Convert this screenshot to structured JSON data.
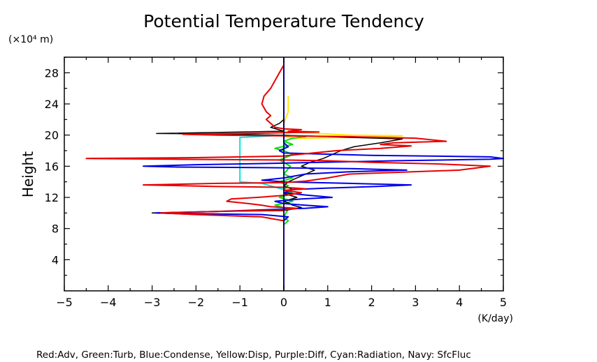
{
  "chart_data": {
    "type": "line",
    "title": "Potential Temperature Tendency",
    "ylabel": "Height",
    "yunit": "(×10⁴ m)",
    "xunit": "(K/day)",
    "xlim": [
      -5,
      5
    ],
    "ylim": [
      0,
      30
    ],
    "xticks": [
      -5,
      -4,
      -3,
      -2,
      -1,
      0,
      1,
      2,
      3,
      4,
      5
    ],
    "xtick_labels": [
      "−5",
      "−4",
      "−3",
      "−2",
      "−1",
      "0",
      "1",
      "2",
      "3",
      "4",
      "5"
    ],
    "yticks": [
      4,
      8,
      12,
      16,
      20,
      24,
      28
    ],
    "ytick_labels": [
      "4",
      "8",
      "12",
      "16",
      "20",
      "24",
      "28"
    ],
    "grid": false,
    "legend_text": "Red:Adv, Green:Turb, Blue:Condense, Yellow:Disp, Purple:Diff, Cyan:Radiation, Navy: SfcFluc",
    "series": [
      {
        "name": "Cyan:Radiation",
        "color": "#00e5e5",
        "width": 2,
        "points": [
          [
            0,
            0.2
          ],
          [
            0,
            13
          ],
          [
            -0.5,
            13.8
          ],
          [
            -1,
            14
          ],
          [
            -1,
            19.7
          ],
          [
            -0.6,
            19.8
          ],
          [
            0,
            20
          ]
        ]
      },
      {
        "name": "Yellow:Disp",
        "color": "#ffe600",
        "width": 2,
        "points": [
          [
            0,
            0.2
          ],
          [
            0,
            20.5
          ],
          [
            0.4,
            20.3
          ],
          [
            1.5,
            20
          ],
          [
            2.7,
            19.9
          ],
          [
            1.5,
            19.7
          ],
          [
            0.3,
            19.6
          ],
          [
            0,
            19.8
          ],
          [
            0,
            21.5
          ],
          [
            0.1,
            23
          ],
          [
            0.1,
            25
          ]
        ]
      },
      {
        "name": "Green:Turb",
        "color": "#00e000",
        "width": 2,
        "points": [
          [
            0,
            0.2
          ],
          [
            0,
            8.5
          ],
          [
            0.1,
            9
          ],
          [
            0,
            9.5
          ],
          [
            0.1,
            10.5
          ],
          [
            -0.2,
            11
          ],
          [
            0.2,
            11.5
          ],
          [
            -0.1,
            12
          ],
          [
            0.2,
            12.5
          ],
          [
            0,
            13
          ],
          [
            0.1,
            13.5
          ],
          [
            -0.1,
            14
          ],
          [
            0.2,
            14.5
          ],
          [
            0,
            15
          ],
          [
            0.15,
            16
          ],
          [
            -0.1,
            16.8
          ],
          [
            0.2,
            17.5
          ],
          [
            0,
            18
          ],
          [
            -0.2,
            18.3
          ],
          [
            0.2,
            18.8
          ],
          [
            0,
            19.2
          ],
          [
            0.2,
            19.6
          ],
          [
            0.5,
            19.8
          ],
          [
            0,
            20
          ],
          [
            0,
            20.5
          ]
        ]
      },
      {
        "name": "Black",
        "color": "#000000",
        "width": 1.5,
        "points": [
          [
            0,
            0.2
          ],
          [
            0,
            9
          ],
          [
            -0.5,
            9.5
          ],
          [
            -2,
            9.8
          ],
          [
            -3,
            10
          ],
          [
            -1.5,
            10.2
          ],
          [
            0,
            10.3
          ],
          [
            0.2,
            10.5
          ],
          [
            0.4,
            10.7
          ],
          [
            0.2,
            11
          ],
          [
            0.1,
            11.3
          ],
          [
            0,
            11.5
          ],
          [
            0.3,
            12
          ],
          [
            0,
            12.5
          ],
          [
            0.2,
            13
          ],
          [
            0,
            13.5
          ],
          [
            0.1,
            14
          ],
          [
            0.3,
            14.5
          ],
          [
            0.5,
            15
          ],
          [
            0.7,
            15.5
          ],
          [
            0.4,
            16
          ],
          [
            0.6,
            16.5
          ],
          [
            0.9,
            17
          ],
          [
            1.1,
            17.5
          ],
          [
            1.3,
            18
          ],
          [
            1.6,
            18.5
          ],
          [
            2.2,
            19
          ],
          [
            2.7,
            19.5
          ],
          [
            1.5,
            19.7
          ],
          [
            0.5,
            19.9
          ],
          [
            -1,
            20.1
          ],
          [
            -2.9,
            20.2
          ],
          [
            -1,
            20.4
          ],
          [
            0,
            20.5
          ],
          [
            -0.3,
            21
          ],
          [
            -0.1,
            21.5
          ],
          [
            0,
            22
          ],
          [
            0,
            25
          ]
        ]
      },
      {
        "name": "Blue:Condense",
        "color": "#0000e8",
        "width": 2,
        "points": [
          [
            0,
            0.2
          ],
          [
            0,
            9
          ],
          [
            0.1,
            9.5
          ],
          [
            -0.5,
            9.8
          ],
          [
            -2,
            9.9
          ],
          [
            -2.9,
            10
          ],
          [
            -1.5,
            10.2
          ],
          [
            -0.5,
            10.4
          ],
          [
            0.5,
            10.6
          ],
          [
            1,
            10.8
          ],
          [
            0.5,
            11
          ],
          [
            0,
            11.2
          ],
          [
            -0.2,
            11.5
          ],
          [
            0.4,
            11.8
          ],
          [
            1.1,
            12
          ],
          [
            0.5,
            12.3
          ],
          [
            0,
            12.6
          ],
          [
            0.2,
            13
          ],
          [
            1,
            13.2
          ],
          [
            2.1,
            13.4
          ],
          [
            2.9,
            13.6
          ],
          [
            1.5,
            13.8
          ],
          [
            0,
            14
          ],
          [
            -0.5,
            14.2
          ],
          [
            0,
            14.5
          ],
          [
            0.5,
            15
          ],
          [
            1.5,
            15.3
          ],
          [
            2.8,
            15.5
          ],
          [
            1.5,
            15.7
          ],
          [
            0,
            15.8
          ],
          [
            -2.5,
            15.9
          ],
          [
            -3.2,
            16
          ],
          [
            -2,
            16.2
          ],
          [
            0,
            16.4
          ],
          [
            2.5,
            16.7
          ],
          [
            4.7,
            16.9
          ],
          [
            5,
            17
          ],
          [
            4.7,
            17.2
          ],
          [
            2,
            17.4
          ],
          [
            0,
            17.7
          ],
          [
            -0.1,
            18
          ],
          [
            0.1,
            18.5
          ],
          [
            0,
            19
          ],
          [
            0,
            30
          ]
        ]
      },
      {
        "name": "Red:Adv",
        "color": "#e80000",
        "width": 2,
        "points": [
          [
            0,
            0.2
          ],
          [
            0,
            9
          ],
          [
            -0.2,
            9.2
          ],
          [
            -0.5,
            9.5
          ],
          [
            -2,
            9.8
          ],
          [
            -2.8,
            10
          ],
          [
            -1.5,
            10.2
          ],
          [
            0,
            10.4
          ],
          [
            0.3,
            10.6
          ],
          [
            -0.3,
            10.8
          ],
          [
            -0.5,
            11
          ],
          [
            -0.8,
            11.2
          ],
          [
            -1.3,
            11.5
          ],
          [
            -1.2,
            11.8
          ],
          [
            -0.6,
            12
          ],
          [
            0.1,
            12.3
          ],
          [
            0.4,
            12.6
          ],
          [
            0,
            12.9
          ],
          [
            0.5,
            13.1
          ],
          [
            0,
            13.3
          ],
          [
            -1.5,
            13.4
          ],
          [
            -3.2,
            13.6
          ],
          [
            -1.5,
            13.8
          ],
          [
            0,
            13.9
          ],
          [
            0.5,
            14.1
          ],
          [
            1,
            14.5
          ],
          [
            1.5,
            15
          ],
          [
            2.5,
            15.2
          ],
          [
            4,
            15.5
          ],
          [
            4.7,
            16
          ],
          [
            3.5,
            16.3
          ],
          [
            2,
            16.5
          ],
          [
            1,
            16.7
          ],
          [
            0,
            16.8
          ],
          [
            -2.5,
            16.9
          ],
          [
            -4.5,
            17
          ],
          [
            -2,
            17.1
          ],
          [
            0,
            17.3
          ],
          [
            0.3,
            17.5
          ],
          [
            1.2,
            18
          ],
          [
            2.2,
            18.3
          ],
          [
            2.9,
            18.6
          ],
          [
            2.2,
            18.8
          ],
          [
            2.5,
            19
          ],
          [
            3.7,
            19.2
          ],
          [
            3,
            19.6
          ],
          [
            1.5,
            19.8
          ],
          [
            0,
            19.9
          ],
          [
            -1.5,
            20
          ],
          [
            -2.3,
            20.1
          ],
          [
            -1,
            20.2
          ],
          [
            0,
            20.3
          ],
          [
            0.8,
            20.4
          ],
          [
            0.1,
            20.5
          ],
          [
            0.4,
            20.7
          ],
          [
            0,
            20.8
          ],
          [
            -0.2,
            21
          ],
          [
            -0.3,
            21.5
          ],
          [
            -0.4,
            22
          ],
          [
            -0.3,
            22.5
          ],
          [
            -0.4,
            23
          ],
          [
            -0.5,
            24
          ],
          [
            -0.45,
            25
          ],
          [
            -0.3,
            26
          ],
          [
            -0.2,
            27
          ],
          [
            -0.1,
            28
          ],
          [
            0,
            29
          ],
          [
            0,
            29.9
          ]
        ]
      },
      {
        "name": "Navy: SfcFluc",
        "color": "#000080",
        "width": 1.8,
        "points": [
          [
            0,
            0
          ],
          [
            0,
            30
          ]
        ]
      }
    ]
  }
}
